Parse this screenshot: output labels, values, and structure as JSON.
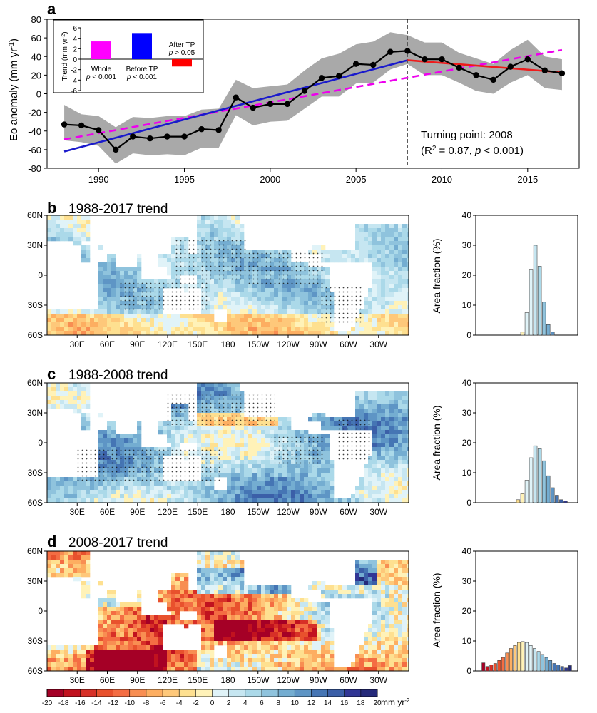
{
  "panel_a": {
    "label": "a",
    "ylabel_main": "Eo anomaly (mm yr",
    "ylabel_sup": "-1",
    "ylabel_close": ")",
    "annotation_line1": "Turning point: 2008",
    "annotation_line2_pre": "(R",
    "annotation_line2_sup": "2",
    "annotation_line2_mid": " = 0.87, ",
    "annotation_line2_p": "p",
    "annotation_line2_post": " < 0.001)",
    "inset": {
      "ylabel_main": "Trend (mm yr",
      "ylabel_sup": "-2",
      "ylabel_close": ")",
      "label_whole": "Whole",
      "p_whole": "< 0.001",
      "label_before": "Before TP",
      "p_before": "< 0.001",
      "label_after": "After TP",
      "p_after": "> 0.05",
      "p_symbol": "p"
    }
  },
  "panel_b": {
    "label": "b",
    "title": "1988-2017 trend"
  },
  "panel_c": {
    "label": "c",
    "title": "1988-2008 trend"
  },
  "panel_d": {
    "label": "d",
    "title": "2008-2017 trend"
  },
  "map_lat_labels": [
    "60N",
    "30N",
    "0",
    "30S",
    "60S"
  ],
  "map_lon_labels": [
    "30E",
    "60E",
    "90E",
    "120E",
    "150E",
    "180",
    "150W",
    "120W",
    "90W",
    "60W",
    "30W"
  ],
  "hist_ylabel": "Area fraction (%)",
  "colorbar": {
    "unit_main": "mm yr",
    "unit_sup": "-2",
    "tick_labels": [
      "-20",
      "-18",
      "-16",
      "-14",
      "-12",
      "-10",
      "-8",
      "-6",
      "-4",
      "-2",
      "0",
      "2",
      "4",
      "6",
      "8",
      "10",
      "12",
      "14",
      "16",
      "18",
      "20"
    ],
    "colors": [
      "#a50026",
      "#c1121f",
      "#d73027",
      "#e8512d",
      "#f46d43",
      "#f88e52",
      "#fdae61",
      "#fec87a",
      "#fee090",
      "#fff2b8",
      "#e0f3f8",
      "#c6e6f1",
      "#abd9e9",
      "#8fc3dd",
      "#74add1",
      "#5e95c5",
      "#4575b4",
      "#3b5fa8",
      "#313695",
      "#252a7a"
    ]
  },
  "chart_data": [
    {
      "type": "line",
      "title": "",
      "xlabel": "",
      "ylabel": "Eo anomaly (mm yr-1)",
      "xlim": [
        1987,
        2018
      ],
      "ylim": [
        -80,
        80
      ],
      "x_ticks": [
        1990,
        1995,
        2000,
        2005,
        2010,
        2015
      ],
      "y_ticks": [
        -80,
        -60,
        -40,
        -20,
        0,
        20,
        40,
        60,
        80
      ],
      "x": [
        1988,
        1989,
        1990,
        1991,
        1992,
        1993,
        1994,
        1995,
        1996,
        1997,
        1998,
        1999,
        2000,
        2001,
        2002,
        2003,
        2004,
        2005,
        2006,
        2007,
        2008,
        2009,
        2010,
        2011,
        2012,
        2013,
        2014,
        2015,
        2016,
        2017
      ],
      "series": [
        {
          "name": "",
          "color": "#000000",
          "values": [
            -33,
            -34,
            -39,
            -60,
            -46,
            -48,
            -46,
            -46,
            -38,
            -39,
            -4,
            -15,
            -11,
            -11,
            3,
            17,
            19,
            32,
            31,
            45,
            46,
            37,
            37,
            28,
            20,
            15,
            29,
            37,
            25,
            22
          ]
        }
      ],
      "uncertainty_upper": [
        -12,
        -22,
        -24,
        -36,
        -25,
        -26,
        -24,
        -24,
        -17,
        -16,
        15,
        6,
        8,
        10,
        25,
        38,
        43,
        53,
        56,
        66,
        63,
        55,
        55,
        44,
        38,
        32,
        47,
        58,
        40,
        37
      ],
      "uncertainty_lower": [
        -50,
        -52,
        -56,
        -75,
        -64,
        -66,
        -65,
        -66,
        -58,
        -58,
        -23,
        -34,
        -30,
        -29,
        -16,
        -3,
        -3,
        11,
        12,
        26,
        32,
        20,
        20,
        12,
        3,
        0,
        12,
        20,
        6,
        4
      ],
      "fits": [
        {
          "label": "whole",
          "color": "#ee00ee",
          "dashed": true,
          "x": [
            1988,
            2017
          ],
          "y": [
            -49,
            47
          ]
        },
        {
          "label": "before TP",
          "color": "#1a1acc",
          "dashed": false,
          "x": [
            1988,
            2008
          ],
          "y": [
            -62,
            36
          ]
        },
        {
          "label": "after TP",
          "color": "#ee1c1c",
          "dashed": false,
          "x": [
            2008,
            2017
          ],
          "y": [
            36,
            23
          ]
        }
      ],
      "turning_point_x": 2008
    },
    {
      "type": "bar",
      "title": "",
      "ylabel": "Trend (mm yr-2)",
      "ylim": [
        -6,
        6
      ],
      "y_ticks": [
        -6,
        -4,
        -2,
        0,
        2,
        4,
        6
      ],
      "categories": [
        "Whole",
        "Before TP",
        "After TP"
      ],
      "values": [
        3.4,
        5.0,
        -1.4
      ],
      "colors": [
        "#ff00ff",
        "#0000ff",
        "#ff0000"
      ]
    },
    {
      "type": "bar",
      "panel": "b",
      "title": "",
      "ylabel": "Area fraction (%)",
      "ylim": [
        0,
        40
      ],
      "y_ticks": [
        0,
        10,
        20,
        30,
        40
      ],
      "categories": [
        "-20",
        "-18",
        "-16",
        "-14",
        "-12",
        "-10",
        "-8",
        "-6",
        "-4",
        "-2",
        "0",
        "2",
        "4",
        "6",
        "8",
        "10",
        "12",
        "14",
        "16",
        "18",
        "20"
      ],
      "values": [
        0,
        0,
        0,
        0,
        0,
        0,
        0,
        0,
        0,
        1,
        7.5,
        22,
        30,
        23,
        11,
        3.5,
        1,
        0,
        0,
        0,
        0
      ]
    },
    {
      "type": "bar",
      "panel": "c",
      "title": "",
      "ylabel": "Area fraction (%)",
      "ylim": [
        0,
        40
      ],
      "y_ticks": [
        0,
        10,
        20,
        30,
        40
      ],
      "categories": [
        "-20",
        "-18",
        "-16",
        "-14",
        "-12",
        "-10",
        "-8",
        "-6",
        "-4",
        "-2",
        "0",
        "2",
        "4",
        "6",
        "8",
        "10",
        "12",
        "14",
        "16",
        "18",
        "20"
      ],
      "values": [
        0,
        0,
        0,
        0,
        0,
        0,
        0,
        0,
        1,
        3,
        7.5,
        15,
        19,
        18,
        14,
        9,
        5,
        2.5,
        1,
        0.5,
        0
      ]
    },
    {
      "type": "bar",
      "panel": "d",
      "title": "",
      "ylabel": "Area fraction (%)",
      "ylim": [
        0,
        40
      ],
      "y_ticks": [
        0,
        10,
        20,
        30,
        40
      ],
      "categories": [
        "-22",
        "-20",
        "-18",
        "-16",
        "-14",
        "-12",
        "-10",
        "-8",
        "-6",
        "-4",
        "-2",
        "0",
        "2",
        "4",
        "6",
        "8",
        "10",
        "12",
        "14",
        "16",
        "18",
        "20",
        "22"
      ],
      "values": [
        2.7,
        1.5,
        2,
        2.5,
        3.5,
        4.5,
        6,
        7.5,
        8.5,
        9.5,
        9.8,
        9.5,
        8.5,
        7.5,
        6.5,
        5.5,
        4.5,
        3.5,
        2.5,
        2,
        1.5,
        1,
        1.8
      ]
    }
  ]
}
